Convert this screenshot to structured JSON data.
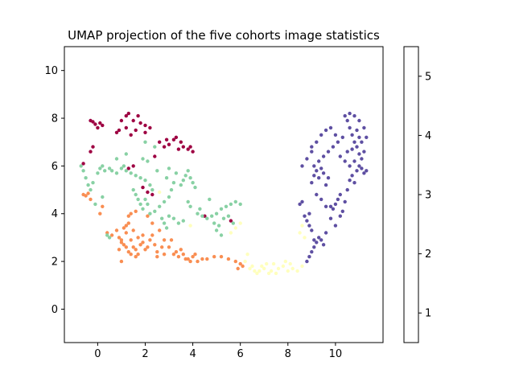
{
  "chart_data": {
    "type": "scatter",
    "title": "UMAP projection of the five cohorts image statistics",
    "xlabel": "",
    "ylabel": "",
    "xlim": [
      -1.4,
      12.0
    ],
    "ylim": [
      -1.4,
      11.0
    ],
    "x_ticks": [
      0,
      2,
      4,
      6,
      8,
      10
    ],
    "y_ticks": [
      0,
      2,
      4,
      6,
      8,
      10
    ],
    "grid": false,
    "colorbar": {
      "ticks": [
        "1",
        "2",
        "3",
        "4",
        "5"
      ],
      "colors": [
        "#9e0142",
        "#f98e52",
        "#ffffbe",
        "#88d1a4",
        "#5e4fa2"
      ]
    },
    "series": [
      {
        "values": [
          [
            -0.3,
            7.9
          ],
          [
            -0.2,
            7.85
          ],
          [
            0.1,
            7.8
          ],
          [
            0.2,
            7.7
          ],
          [
            0.0,
            7.6
          ],
          [
            -0.1,
            7.75
          ],
          [
            1.0,
            7.9
          ],
          [
            1.2,
            8.1
          ],
          [
            1.3,
            8.2
          ],
          [
            1.5,
            7.9
          ],
          [
            1.7,
            8.1
          ],
          [
            1.8,
            7.8
          ],
          [
            2.0,
            7.7
          ],
          [
            1.2,
            7.6
          ],
          [
            1.4,
            7.3
          ],
          [
            1.6,
            7.5
          ],
          [
            2.0,
            7.4
          ],
          [
            2.2,
            7.6
          ],
          [
            0.9,
            7.5
          ],
          [
            0.8,
            7.4
          ],
          [
            2.6,
            7.0
          ],
          [
            2.8,
            6.8
          ],
          [
            3.0,
            6.9
          ],
          [
            3.2,
            7.1
          ],
          [
            3.3,
            7.2
          ],
          [
            3.5,
            7.0
          ],
          [
            3.6,
            6.8
          ],
          [
            3.8,
            6.7
          ],
          [
            4.0,
            6.6
          ],
          [
            3.9,
            6.8
          ],
          [
            3.4,
            6.7
          ],
          [
            2.9,
            7.1
          ],
          [
            -0.2,
            6.8
          ],
          [
            -0.3,
            6.6
          ],
          [
            -0.6,
            6.1
          ],
          [
            1.3,
            5.9
          ],
          [
            1.5,
            6.0
          ],
          [
            2.1,
            4.9
          ],
          [
            2.3,
            4.8
          ],
          [
            4.5,
            3.9
          ],
          [
            5.6,
            3.7
          ],
          [
            2.4,
            6.4
          ],
          [
            1.9,
            5.1
          ]
        ]
      },
      {
        "values": [
          [
            -0.6,
            4.8
          ],
          [
            -0.5,
            4.75
          ],
          [
            -0.4,
            4.85
          ],
          [
            -0.3,
            4.6
          ],
          [
            0.2,
            4.3
          ],
          [
            0.1,
            4.0
          ],
          [
            0.4,
            3.2
          ],
          [
            0.6,
            3.1
          ],
          [
            0.8,
            3.3
          ],
          [
            0.9,
            3.0
          ],
          [
            1.0,
            2.8
          ],
          [
            1.1,
            3.4
          ],
          [
            1.2,
            3.5
          ],
          [
            1.3,
            3.6
          ],
          [
            1.2,
            3.2
          ],
          [
            1.4,
            2.9
          ],
          [
            1.5,
            2.6
          ],
          [
            1.6,
            2.5
          ],
          [
            1.7,
            3.0
          ],
          [
            1.8,
            2.7
          ],
          [
            1.9,
            2.8
          ],
          [
            2.0,
            2.5
          ],
          [
            2.1,
            2.6
          ],
          [
            2.2,
            2.9
          ],
          [
            2.3,
            3.1
          ],
          [
            2.4,
            2.7
          ],
          [
            2.5,
            2.4
          ],
          [
            1.0,
            2.9
          ],
          [
            1.1,
            2.7
          ],
          [
            1.2,
            2.6
          ],
          [
            1.3,
            2.4
          ],
          [
            1.4,
            2.3
          ],
          [
            1.6,
            2.2
          ],
          [
            1.7,
            2.3
          ],
          [
            1.9,
            3.1
          ],
          [
            1.5,
            3.3
          ],
          [
            1.3,
            3.9
          ],
          [
            1.4,
            4.0
          ],
          [
            1.6,
            4.1
          ],
          [
            2.1,
            3.9
          ],
          [
            2.3,
            3.6
          ],
          [
            2.6,
            3.3
          ],
          [
            2.8,
            2.9
          ],
          [
            3.0,
            2.6
          ],
          [
            2.8,
            2.3
          ],
          [
            3.2,
            2.3
          ],
          [
            3.4,
            2.2
          ],
          [
            3.5,
            2.5
          ],
          [
            3.6,
            2.3
          ],
          [
            3.7,
            2.1
          ],
          [
            3.8,
            2.1
          ],
          [
            3.9,
            2.0
          ],
          [
            4.0,
            2.2
          ],
          [
            4.1,
            2.3
          ],
          [
            4.2,
            2.0
          ],
          [
            4.4,
            2.1
          ],
          [
            4.6,
            2.1
          ],
          [
            4.9,
            2.2
          ],
          [
            2.5,
            2.2
          ],
          [
            3.3,
            2.4
          ],
          [
            5.2,
            2.2
          ],
          [
            5.5,
            2.1
          ],
          [
            5.8,
            2.0
          ],
          [
            6.0,
            1.9
          ],
          [
            6.1,
            1.8
          ],
          [
            5.9,
            1.7
          ],
          [
            3.1,
            2.9
          ],
          [
            2.7,
            2.6
          ],
          [
            1.0,
            2.0
          ],
          [
            0.9,
            2.5
          ]
        ]
      },
      {
        "values": [
          [
            6.2,
            2.0
          ],
          [
            6.4,
            1.7
          ],
          [
            6.6,
            1.6
          ],
          [
            6.8,
            1.6
          ],
          [
            7.0,
            1.7
          ],
          [
            7.2,
            1.5
          ],
          [
            7.3,
            1.6
          ],
          [
            7.5,
            1.5
          ],
          [
            7.6,
            1.7
          ],
          [
            7.8,
            1.8
          ],
          [
            8.0,
            1.6
          ],
          [
            8.2,
            1.7
          ],
          [
            8.4,
            1.6
          ],
          [
            8.6,
            1.8
          ],
          [
            7.1,
            1.9
          ],
          [
            6.9,
            1.8
          ],
          [
            6.7,
            1.5
          ],
          [
            6.5,
            1.8
          ],
          [
            7.9,
            2.0
          ],
          [
            8.5,
            3.2
          ],
          [
            8.6,
            3.5
          ],
          [
            8.7,
            3.0
          ],
          [
            6.0,
            3.6
          ],
          [
            5.8,
            3.4
          ],
          [
            2.6,
            4.9
          ],
          [
            3.9,
            3.5
          ],
          [
            6.3,
            2.3
          ],
          [
            7.4,
            1.9
          ],
          [
            8.1,
            1.9
          ],
          [
            5.6,
            3.2
          ]
        ]
      },
      {
        "values": [
          [
            -0.7,
            6.0
          ],
          [
            -0.6,
            5.8
          ],
          [
            -0.5,
            5.5
          ],
          [
            -0.4,
            5.2
          ],
          [
            -0.3,
            5.0
          ],
          [
            -0.2,
            5.3
          ],
          [
            0.0,
            5.7
          ],
          [
            0.1,
            5.9
          ],
          [
            0.2,
            6.0
          ],
          [
            0.3,
            5.8
          ],
          [
            0.5,
            5.9
          ],
          [
            0.6,
            5.8
          ],
          [
            0.8,
            5.7
          ],
          [
            1.0,
            5.9
          ],
          [
            1.1,
            6.0
          ],
          [
            1.2,
            5.8
          ],
          [
            1.4,
            5.7
          ],
          [
            1.6,
            5.6
          ],
          [
            1.8,
            5.5
          ],
          [
            2.0,
            5.4
          ],
          [
            2.2,
            5.2
          ],
          [
            2.3,
            5.0
          ],
          [
            1.5,
            5.0
          ],
          [
            1.6,
            4.8
          ],
          [
            1.7,
            4.6
          ],
          [
            1.8,
            4.4
          ],
          [
            1.9,
            4.2
          ],
          [
            2.0,
            4.6
          ],
          [
            2.1,
            4.4
          ],
          [
            2.2,
            4.0
          ],
          [
            2.4,
            4.1
          ],
          [
            2.6,
            4.3
          ],
          [
            2.8,
            4.5
          ],
          [
            3.0,
            4.7
          ],
          [
            3.1,
            5.0
          ],
          [
            3.2,
            5.3
          ],
          [
            3.3,
            5.7
          ],
          [
            3.0,
            5.9
          ],
          [
            2.9,
            5.5
          ],
          [
            3.5,
            5.2
          ],
          [
            3.6,
            5.4
          ],
          [
            3.7,
            5.6
          ],
          [
            3.8,
            5.8
          ],
          [
            3.9,
            5.5
          ],
          [
            4.0,
            5.3
          ],
          [
            4.1,
            5.1
          ],
          [
            3.8,
            4.5
          ],
          [
            3.9,
            4.3
          ],
          [
            4.2,
            4.0
          ],
          [
            4.3,
            4.2
          ],
          [
            4.4,
            3.9
          ],
          [
            4.6,
            3.8
          ],
          [
            4.8,
            3.9
          ],
          [
            5.0,
            4.0
          ],
          [
            5.2,
            4.2
          ],
          [
            5.4,
            4.3
          ],
          [
            5.6,
            4.4
          ],
          [
            5.8,
            4.5
          ],
          [
            6.0,
            4.4
          ],
          [
            5.5,
            3.9
          ],
          [
            5.3,
            3.8
          ],
          [
            5.1,
            3.5
          ],
          [
            5.0,
            3.3
          ],
          [
            5.2,
            3.1
          ],
          [
            4.9,
            3.6
          ],
          [
            2.7,
            3.8
          ],
          [
            2.8,
            3.6
          ],
          [
            2.9,
            3.4
          ],
          [
            3.0,
            3.9
          ],
          [
            3.2,
            3.8
          ],
          [
            3.4,
            3.6
          ],
          [
            3.6,
            3.7
          ],
          [
            0.4,
            3.1
          ],
          [
            0.5,
            3.0
          ],
          [
            0.2,
            4.7
          ],
          [
            -0.1,
            4.4
          ],
          [
            0.8,
            6.3
          ],
          [
            1.2,
            6.5
          ],
          [
            2.1,
            6.2
          ],
          [
            2.4,
            6.8
          ],
          [
            2.0,
            7.0
          ],
          [
            2.5,
            5.8
          ],
          [
            1.9,
            6.3
          ],
          [
            4.7,
            4.6
          ],
          [
            5.7,
            3.6
          ]
        ]
      },
      {
        "values": [
          [
            8.5,
            4.4
          ],
          [
            8.6,
            4.5
          ],
          [
            8.7,
            3.9
          ],
          [
            8.8,
            3.7
          ],
          [
            8.9,
            3.5
          ],
          [
            9.0,
            3.3
          ],
          [
            9.1,
            2.9
          ],
          [
            9.2,
            2.8
          ],
          [
            9.3,
            3.0
          ],
          [
            9.4,
            2.9
          ],
          [
            9.5,
            2.7
          ],
          [
            9.6,
            3.2
          ],
          [
            8.8,
            2.0
          ],
          [
            8.9,
            2.2
          ],
          [
            9.0,
            2.4
          ],
          [
            9.1,
            2.6
          ],
          [
            8.9,
            4.0
          ],
          [
            9.0,
            5.3
          ],
          [
            9.1,
            5.6
          ],
          [
            9.2,
            5.8
          ],
          [
            9.3,
            5.5
          ],
          [
            9.4,
            5.9
          ],
          [
            9.5,
            5.7
          ],
          [
            9.6,
            5.2
          ],
          [
            9.7,
            5.5
          ],
          [
            9.8,
            4.3
          ],
          [
            9.9,
            4.2
          ],
          [
            10.0,
            4.4
          ],
          [
            10.1,
            4.6
          ],
          [
            10.2,
            4.8
          ],
          [
            10.3,
            4.1
          ],
          [
            10.4,
            4.5
          ],
          [
            10.5,
            5.0
          ],
          [
            10.6,
            5.4
          ],
          [
            10.7,
            5.6
          ],
          [
            10.8,
            5.3
          ],
          [
            10.9,
            5.8
          ],
          [
            11.0,
            6.0
          ],
          [
            11.1,
            5.9
          ],
          [
            11.2,
            5.7
          ],
          [
            11.3,
            5.8
          ],
          [
            11.1,
            6.3
          ],
          [
            11.0,
            6.5
          ],
          [
            10.9,
            6.8
          ],
          [
            10.8,
            7.0
          ],
          [
            10.7,
            7.3
          ],
          [
            10.6,
            7.6
          ],
          [
            10.5,
            7.9
          ],
          [
            10.4,
            8.1
          ],
          [
            10.6,
            8.2
          ],
          [
            10.8,
            8.1
          ],
          [
            11.0,
            7.9
          ],
          [
            11.2,
            7.6
          ],
          [
            11.3,
            7.2
          ],
          [
            11.1,
            7.0
          ],
          [
            10.9,
            7.5
          ],
          [
            10.3,
            7.2
          ],
          [
            10.1,
            7.0
          ],
          [
            9.9,
            6.8
          ],
          [
            9.7,
            6.6
          ],
          [
            9.5,
            6.4
          ],
          [
            9.3,
            6.2
          ],
          [
            9.1,
            6.0
          ],
          [
            9.0,
            6.8
          ],
          [
            9.2,
            7.0
          ],
          [
            9.4,
            7.3
          ],
          [
            9.6,
            7.5
          ],
          [
            9.8,
            7.6
          ],
          [
            10.0,
            7.3
          ],
          [
            10.2,
            6.4
          ],
          [
            10.4,
            6.2
          ],
          [
            10.6,
            6.0
          ],
          [
            10.8,
            6.2
          ],
          [
            11.0,
            7.2
          ],
          [
            8.6,
            6.0
          ],
          [
            8.8,
            6.3
          ],
          [
            9.0,
            6.6
          ],
          [
            9.2,
            4.8
          ],
          [
            9.4,
            4.6
          ],
          [
            9.6,
            4.3
          ],
          [
            9.8,
            3.8
          ],
          [
            10.0,
            3.5
          ],
          [
            10.2,
            3.9
          ],
          [
            10.5,
            6.6
          ],
          [
            10.7,
            6.7
          ],
          [
            11.2,
            6.6
          ]
        ]
      }
    ]
  }
}
